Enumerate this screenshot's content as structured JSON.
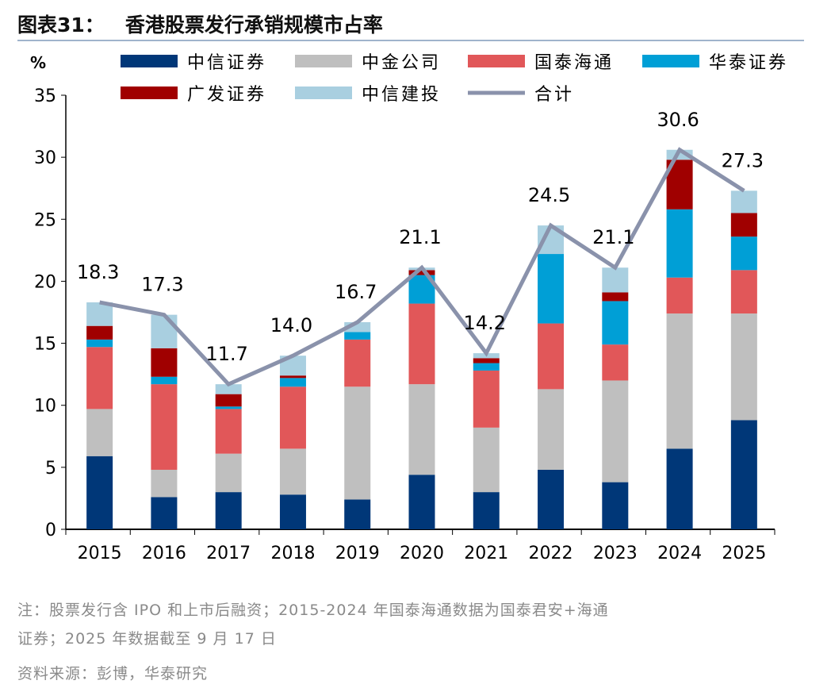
{
  "title": "图表31：   香港股票发行承销规模市占率",
  "chart_data": {
    "type": "bar",
    "stacked": true,
    "ylabel": "%",
    "ylim": [
      0,
      35
    ],
    "yticks": [
      0,
      5,
      10,
      15,
      20,
      25,
      30,
      35
    ],
    "grid": false,
    "legend_position": "top",
    "categories": [
      "2015",
      "2016",
      "2017",
      "2018",
      "2019",
      "2020",
      "2021",
      "2022",
      "2023",
      "2024",
      "2025"
    ],
    "series": [
      {
        "name": "中信证券",
        "color": "#003778",
        "values": [
          5.9,
          2.6,
          3.0,
          2.8,
          2.4,
          4.4,
          3.0,
          4.8,
          3.8,
          6.5,
          8.8
        ]
      },
      {
        "name": "中金公司",
        "color": "#bfbfbf",
        "values": [
          3.8,
          2.2,
          3.1,
          3.7,
          9.1,
          7.3,
          5.2,
          6.5,
          8.2,
          10.9,
          8.6
        ]
      },
      {
        "name": "国泰海通",
        "color": "#e15759",
        "values": [
          5.0,
          6.9,
          3.6,
          5.0,
          3.8,
          6.5,
          4.6,
          5.3,
          2.9,
          2.9,
          3.5
        ]
      },
      {
        "name": "华泰证券",
        "color": "#009fd6",
        "values": [
          0.6,
          0.6,
          0.2,
          0.7,
          0.6,
          2.3,
          0.6,
          5.6,
          3.5,
          5.5,
          2.7
        ]
      },
      {
        "name": "广发证券",
        "color": "#a00000",
        "values": [
          1.1,
          2.3,
          1.0,
          0.2,
          0,
          0.4,
          0.4,
          0,
          0.7,
          4.0,
          1.9
        ]
      },
      {
        "name": "中信建投",
        "color": "#a9cfe0",
        "values": [
          1.9,
          2.7,
          0.8,
          1.6,
          0.8,
          0.2,
          0.4,
          2.3,
          2.0,
          0.8,
          1.8
        ]
      }
    ],
    "line": {
      "name": "合计",
      "type": "line",
      "color": "#8a92ab",
      "values": [
        18.3,
        17.3,
        11.7,
        14.0,
        16.7,
        21.1,
        14.2,
        24.5,
        21.1,
        30.6,
        27.3
      ],
      "labels": [
        "18.3",
        "17.3",
        "11.7",
        "14.0",
        "16.7",
        "21.1",
        "14.2",
        "24.5",
        "21.1",
        "30.6",
        "27.3"
      ]
    }
  },
  "notes": [
    "注：股票发行含 IPO 和上市后融资；2015-2024 年国泰海通数据为国泰君安+海通",
    "证券；2025 年数据截至 9 月 17 日",
    "资料来源：彭博，华泰研究"
  ]
}
